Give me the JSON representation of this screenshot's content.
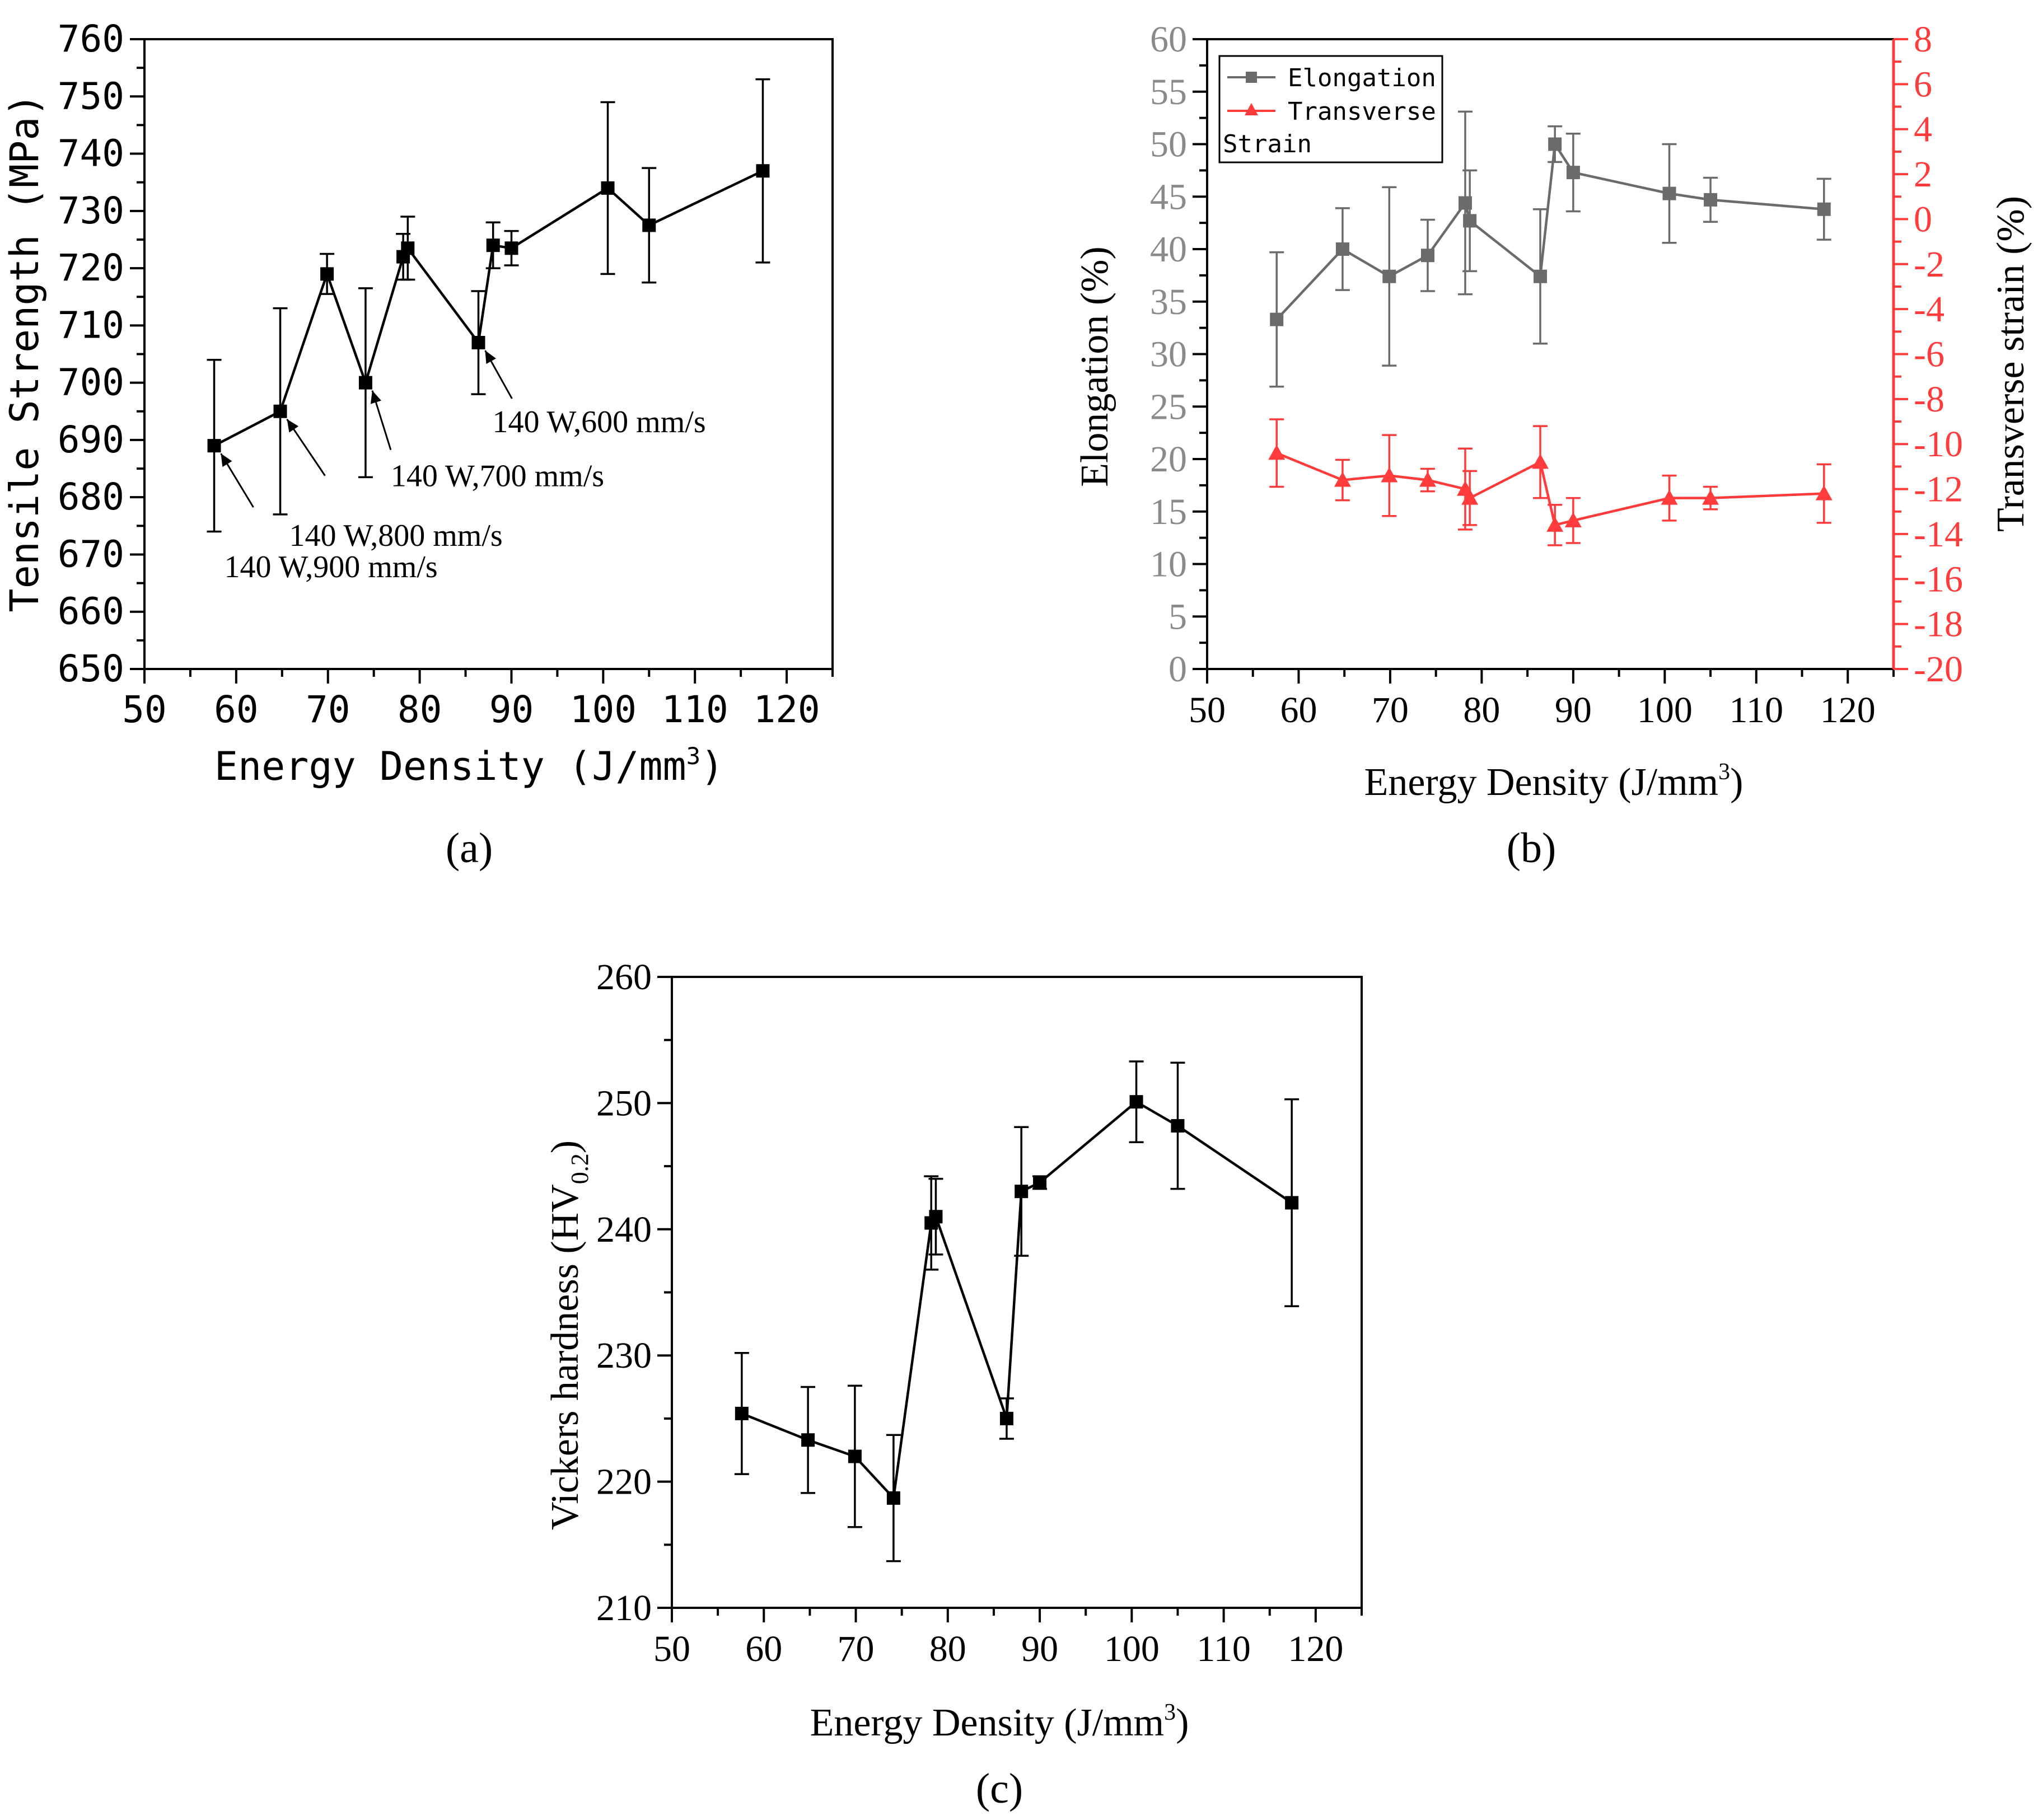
{
  "figure": {
    "panel_labels": [
      "(a)",
      "(b)",
      "(c)"
    ]
  },
  "chart_data": [
    {
      "id": "a",
      "type": "line",
      "panel_label": "(a)",
      "title": "",
      "xlabel": "Energy Density (J/mm",
      "xlabel_superscript": "3",
      "xlabel_close": ")",
      "ylabel": "Tensile Strength (MPa)",
      "xlim": [
        50,
        125
      ],
      "xticks": [
        50,
        60,
        70,
        80,
        90,
        100,
        110,
        120
      ],
      "ylim": [
        650,
        760
      ],
      "yticks": [
        650,
        660,
        670,
        680,
        690,
        700,
        710,
        720,
        730,
        740,
        750,
        760
      ],
      "grid": false,
      "series": [
        {
          "name": "Tensile Strength",
          "color": "#000000",
          "marker": "square",
          "x": [
            57.6,
            64.8,
            69.9,
            74.1,
            78.2,
            78.7,
            86.4,
            88.0,
            90.0,
            100.5,
            105.0,
            117.4
          ],
          "y": [
            689,
            695,
            719,
            700,
            722,
            723.5,
            707,
            724,
            723.5,
            734,
            727.5,
            737
          ],
          "err": [
            15,
            18,
            3.5,
            16.5,
            4,
            5.5,
            9,
            4,
            3,
            15,
            10,
            16
          ]
        }
      ],
      "annotations": [
        {
          "text": "140 W,900 mm/s",
          "x": 57.6,
          "y": 689
        },
        {
          "text": "140 W,800 mm/s",
          "x": 64.8,
          "y": 695
        },
        {
          "text": "140 W,700 mm/s",
          "x": 74.1,
          "y": 700
        },
        {
          "text": "140 W,600 mm/s",
          "x": 86.4,
          "y": 707
        }
      ]
    },
    {
      "id": "b",
      "type": "line",
      "panel_label": "(b)",
      "title": "",
      "xlabel": "Energy Density (J/mm",
      "xlabel_superscript": "3",
      "xlabel_close": ")",
      "ylabel": "Elongation (%)",
      "y2label": "Transverse strain (%)",
      "xlim": [
        50,
        125
      ],
      "xticks": [
        50,
        60,
        70,
        80,
        90,
        100,
        110,
        120
      ],
      "ylim": [
        0,
        60
      ],
      "yticks": [
        0,
        5,
        10,
        15,
        20,
        25,
        30,
        35,
        40,
        45,
        50,
        55,
        60
      ],
      "y2lim": [
        -20,
        8
      ],
      "y2ticks": [
        -20,
        -18,
        -16,
        -14,
        -12,
        -10,
        -8,
        -6,
        -4,
        -2,
        0,
        2,
        4,
        6,
        8
      ],
      "grid": false,
      "legend": {
        "placement": "top-left",
        "entries": [
          "Elongation",
          "Transverse",
          "Strain"
        ]
      },
      "series": [
        {
          "name": "Elongation",
          "axis": "left",
          "color": "#6b6b6b",
          "marker": "square",
          "x": [
            57.6,
            64.8,
            69.9,
            74.1,
            78.2,
            78.7,
            86.4,
            88.0,
            90.0,
            100.5,
            105.0,
            117.4
          ],
          "y": [
            33.3,
            40.0,
            37.4,
            39.4,
            44.4,
            42.7,
            37.4,
            50.0,
            47.3,
            45.3,
            44.7,
            43.8
          ],
          "err": [
            6.4,
            3.9,
            8.5,
            3.4,
            8.7,
            4.8,
            6.4,
            1.7,
            3.7,
            4.7,
            2.1,
            2.9
          ]
        },
        {
          "name": "Transverse Strain",
          "axis": "right",
          "color": "#ff3b3b",
          "marker": "triangle",
          "x": [
            57.6,
            64.8,
            69.9,
            74.1,
            78.2,
            78.7,
            86.4,
            88.0,
            90.0,
            100.5,
            105.0,
            117.4
          ],
          "y": [
            -10.4,
            -11.6,
            -11.4,
            -11.6,
            -12.0,
            -12.4,
            -10.8,
            -13.6,
            -13.4,
            -12.4,
            -12.4,
            -12.2
          ],
          "err": [
            1.5,
            0.9,
            1.8,
            0.5,
            1.8,
            1.2,
            1.6,
            0.9,
            1.0,
            1.0,
            0.5,
            1.3
          ]
        }
      ]
    },
    {
      "id": "c",
      "type": "line",
      "panel_label": "(c)",
      "title": "",
      "xlabel": "Energy Density (J/mm",
      "xlabel_superscript": "3",
      "xlabel_close": ")",
      "ylabel": "Vickers hardness (HV",
      "ylabel_subscript": "0.2",
      "ylabel_close": ")",
      "xlim": [
        50,
        125
      ],
      "xticks": [
        50,
        60,
        70,
        80,
        90,
        100,
        110,
        120
      ],
      "ylim": [
        210,
        260
      ],
      "yticks": [
        210,
        220,
        230,
        240,
        250,
        260
      ],
      "grid": false,
      "series": [
        {
          "name": "Vickers hardness",
          "color": "#000000",
          "marker": "square",
          "x": [
            57.6,
            64.8,
            69.9,
            74.1,
            78.2,
            78.7,
            86.4,
            88.0,
            90.0,
            100.5,
            105.0,
            117.4
          ],
          "y": [
            225.4,
            223.3,
            222.0,
            218.7,
            240.5,
            241.0,
            225.0,
            243.0,
            243.7,
            250.1,
            248.2,
            242.1
          ],
          "err": [
            4.8,
            4.2,
            5.6,
            5.0,
            3.7,
            3.0,
            1.6,
            5.1,
            0.5,
            3.2,
            5.0,
            8.2
          ]
        }
      ]
    }
  ]
}
